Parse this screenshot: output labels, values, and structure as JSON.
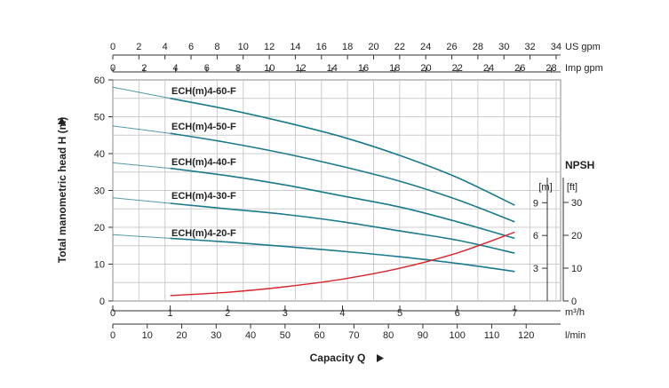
{
  "chart_data": {
    "type": "line",
    "xlabel": "Capacity Q",
    "ylabel": "Total manometric head H (m)",
    "right_axis_title": "NPSH",
    "x": [
      1,
      2,
      3,
      4,
      5,
      6,
      7
    ],
    "xlim": [
      0,
      7.8
    ],
    "ylim": [
      0,
      60
    ],
    "grid": true,
    "axes": {
      "head_ticks": [
        0,
        10,
        20,
        30,
        40,
        50,
        60
      ],
      "m3h": {
        "unit": "m³/h",
        "ticks": [
          0,
          1,
          2,
          3,
          4,
          5,
          6,
          7
        ]
      },
      "lmin": {
        "unit": "l/min",
        "ticks": [
          0,
          10,
          20,
          30,
          40,
          50,
          60,
          70,
          80,
          90,
          100,
          110,
          120
        ]
      },
      "us_gpm": {
        "unit": "US gpm",
        "ticks": [
          0,
          2,
          4,
          6,
          8,
          10,
          12,
          14,
          16,
          18,
          20,
          22,
          24,
          26,
          28,
          30,
          32,
          34
        ]
      },
      "imp_gpm": {
        "unit": "Imp gpm",
        "ticks": [
          0,
          2,
          4,
          6,
          8,
          10,
          12,
          14,
          16,
          18,
          20,
          22,
          24,
          26,
          28
        ]
      },
      "npsh_m": {
        "unit": "[m]",
        "ticks": [
          3,
          6,
          9
        ]
      },
      "npsh_ft": {
        "unit": "[ft]",
        "ticks": [
          0,
          10,
          20,
          30
        ]
      }
    },
    "series": [
      {
        "name": "ECH(m)4-60-F",
        "x": [
          0,
          1,
          2,
          3,
          4,
          5,
          6,
          7
        ],
        "values": [
          58,
          55,
          52,
          48.5,
          44.5,
          39.5,
          33.5,
          26
        ],
        "color": "#1a7a8c"
      },
      {
        "name": "ECH(m)4-50-F",
        "x": [
          0,
          1,
          2,
          3,
          4,
          5,
          6,
          7
        ],
        "values": [
          47.5,
          45.5,
          43,
          40,
          36.5,
          32.5,
          27.5,
          21.5
        ],
        "color": "#1a7a8c"
      },
      {
        "name": "ECH(m)4-40-F",
        "x": [
          0,
          1,
          2,
          3,
          4,
          5,
          6,
          7
        ],
        "values": [
          37.5,
          36,
          34,
          31.5,
          28.5,
          25.5,
          21.5,
          17
        ],
        "color": "#1a7a8c"
      },
      {
        "name": "ECH(m)4-30-F",
        "x": [
          0,
          1,
          2,
          3,
          4,
          5,
          6,
          7
        ],
        "values": [
          28,
          26.5,
          25,
          23.5,
          21.5,
          19,
          16.5,
          13
        ],
        "color": "#1a7a8c"
      },
      {
        "name": "ECH(m)4-20-F",
        "x": [
          0,
          1,
          2,
          3,
          4,
          5,
          6,
          7
        ],
        "values": [
          18,
          17,
          16,
          14.8,
          13.5,
          12,
          10.2,
          8
        ],
        "color": "#1a7a8c"
      }
    ],
    "npsh": {
      "x": [
        1,
        2,
        3,
        4,
        5,
        6,
        7
      ],
      "values_m": [
        0.5,
        0.8,
        1.3,
        2.0,
        3.0,
        4.4,
        6.3
      ],
      "color": "#d9242b"
    }
  }
}
